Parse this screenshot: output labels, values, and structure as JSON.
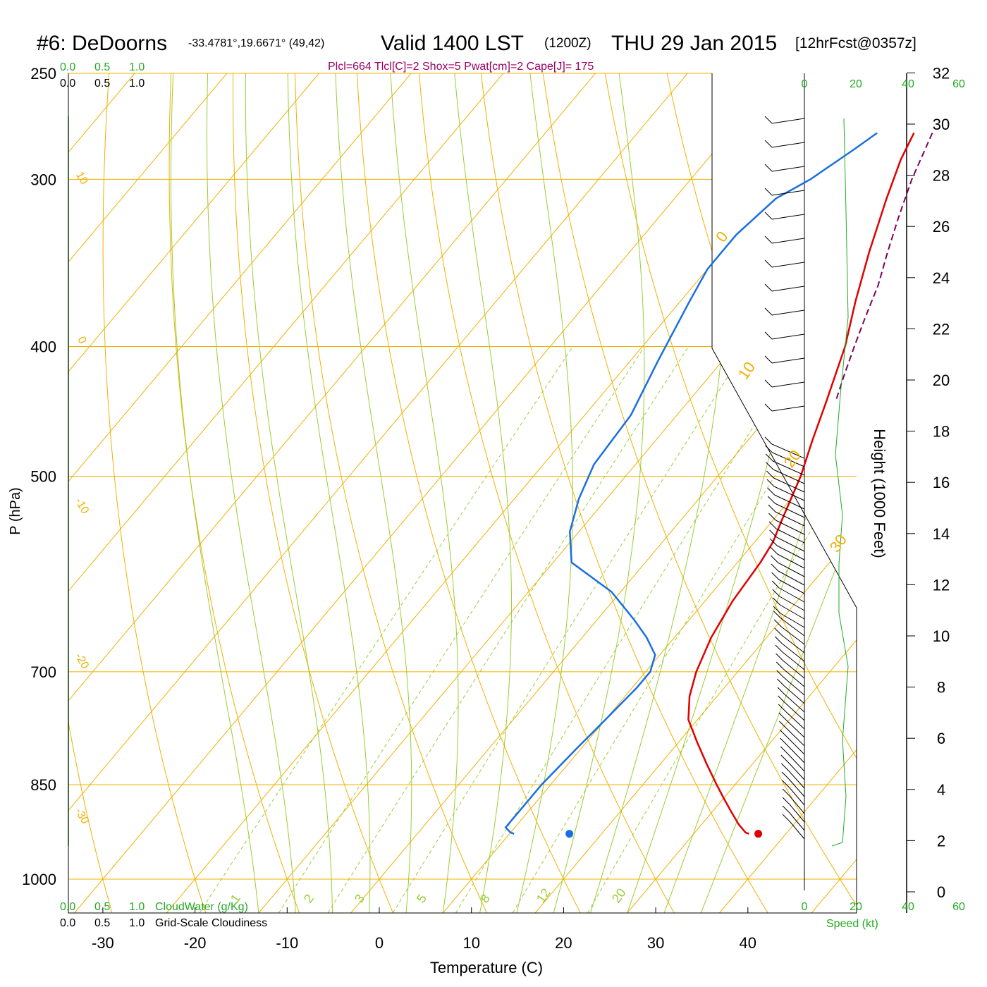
{
  "header": {
    "station": "#6: DeDoorns",
    "coords": "-33.4781°,19.6671° (49,42)",
    "valid": "Valid 1400 LST",
    "utc": "(1200Z)",
    "date": "THU 29 Jan 2015",
    "forecast": "[12hrFcst@0357z]",
    "indices": "Plcl=664 Tlcl[C]=2 Shox=5 Pwat[cm]=2 Cape[J]= 175"
  },
  "colors": {
    "temperature": "#e00000",
    "dewpoint": "#1a6fe0",
    "parcel": "#7a0060",
    "isotherm": "#f0b000",
    "dry_adiabat": "#f0b000",
    "moist_adiabat": "#9acd32",
    "mixing_ratio": "#9acd32",
    "green_axis": "#22aa22",
    "indices_text": "#990066"
  },
  "chart_data": {
    "type": "line",
    "xlabel": "Temperature (C)",
    "ylabel": "P (hPa)",
    "y2label": "Height (1000 Feet)",
    "x_ticks": [
      -30,
      -20,
      -10,
      0,
      10,
      20,
      30,
      40
    ],
    "p_ticks": [
      250,
      300,
      400,
      500,
      700,
      850,
      1000
    ],
    "height_ticks": [
      0,
      2,
      4,
      6,
      8,
      10,
      12,
      14,
      16,
      18,
      20,
      22,
      24,
      26,
      28,
      30,
      32
    ],
    "isotherm_labels": [
      "10",
      "0",
      "-10",
      "-20",
      "-30",
      "0",
      "10",
      "20",
      "30"
    ],
    "mixing_ratio_labels": [
      "1",
      "2",
      "3",
      "5",
      "8",
      "12",
      "20"
    ],
    "cloud_top_ticks": [
      "0.0",
      "0.5",
      "1.0"
    ],
    "cloud_bottom_label": "CloudWater (g/Kg)",
    "cloudiness_label": "Grid-Scale Cloudiness",
    "speed_ticks": [
      "0",
      "20",
      "40",
      "60"
    ],
    "speed_label": "Speed (kt)",
    "series": [
      {
        "key": "temperature",
        "points": [
          [
            36,
            925
          ],
          [
            35.5,
            923
          ],
          [
            34,
            910
          ],
          [
            32,
            890
          ],
          [
            30,
            870
          ],
          [
            28,
            850
          ],
          [
            25,
            820
          ],
          [
            22,
            790
          ],
          [
            19,
            760
          ],
          [
            17,
            730
          ],
          [
            15.5,
            700
          ],
          [
            14,
            660
          ],
          [
            13,
            620
          ],
          [
            12.5,
            580
          ],
          [
            12,
            560
          ],
          [
            11,
            540
          ],
          [
            9,
            500
          ],
          [
            7,
            470
          ],
          [
            5,
            440
          ],
          [
            2,
            400
          ],
          [
            -1,
            370
          ],
          [
            -4,
            340
          ],
          [
            -7,
            310
          ],
          [
            -9,
            290
          ],
          [
            -10,
            277
          ]
        ]
      },
      {
        "key": "parcel",
        "points": [
          [
            -8,
            277
          ],
          [
            -6,
            300
          ],
          [
            -4,
            320
          ],
          [
            -2,
            340
          ],
          [
            0,
            360
          ],
          [
            1.5,
            380
          ],
          [
            3,
            400
          ],
          [
            4.5,
            420
          ],
          [
            6,
            440
          ]
        ]
      },
      {
        "key": "dewpoint",
        "points": [
          [
            10.5,
            925
          ],
          [
            10,
            923
          ],
          [
            9,
            915
          ],
          [
            9,
            900
          ],
          [
            9,
            880
          ],
          [
            9,
            850
          ],
          [
            9.5,
            800
          ],
          [
            10,
            760
          ],
          [
            10.5,
            720
          ],
          [
            10.5,
            700
          ],
          [
            9.5,
            680
          ],
          [
            7,
            660
          ],
          [
            4,
            640
          ],
          [
            -1,
            610
          ],
          [
            -8,
            580
          ],
          [
            -11,
            550
          ],
          [
            -13,
            520
          ],
          [
            -14.5,
            490
          ],
          [
            -15,
            450
          ],
          [
            -17,
            410
          ],
          [
            -19,
            370
          ],
          [
            -20,
            350
          ],
          [
            -20,
            330
          ],
          [
            -19,
            310
          ],
          [
            -17,
            300
          ],
          [
            -15,
            285
          ],
          [
            -14,
            277
          ]
        ]
      }
    ],
    "surface_temperature": 37,
    "surface_dewpoint": 16.5,
    "surface_pressure": 925
  }
}
